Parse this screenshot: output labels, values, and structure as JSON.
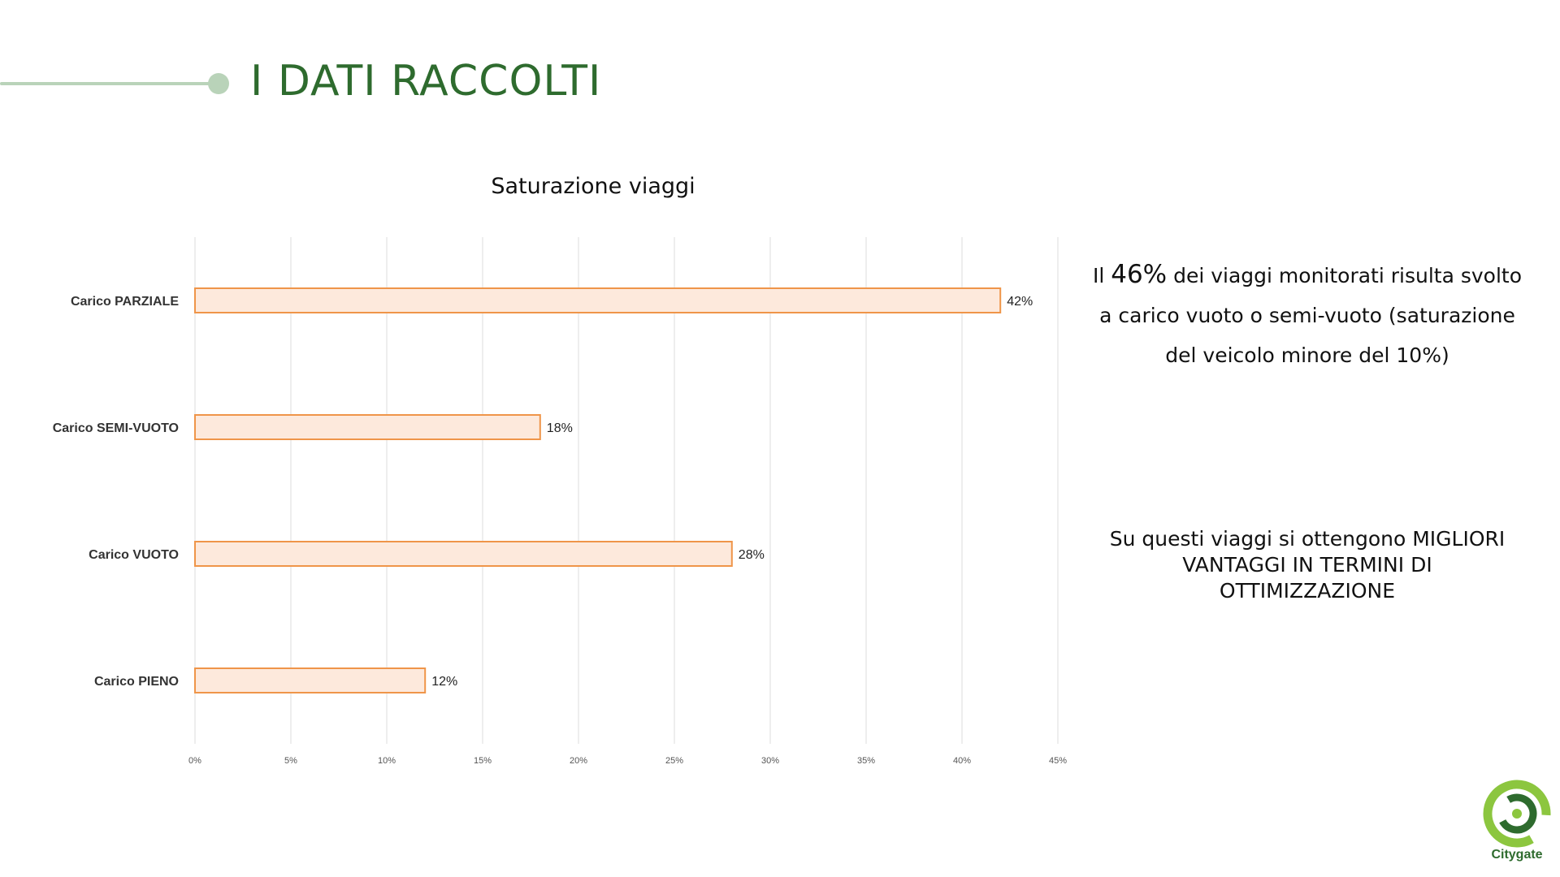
{
  "header": {
    "title": "I DATI RACCOLTI",
    "accent_color": "#b9d3b9",
    "title_color": "#2e6b2e"
  },
  "chart_data": {
    "type": "bar",
    "orientation": "horizontal",
    "title": "Saturazione viaggi",
    "categories": [
      "Carico PARZIALE",
      "Carico SEMI-VUOTO",
      "Carico VUOTO",
      "Carico PIENO"
    ],
    "values": [
      42,
      18,
      28,
      12
    ],
    "value_labels": [
      "42%",
      "18%",
      "28%",
      "12%"
    ],
    "xlim": [
      0,
      45
    ],
    "x_ticks": [
      "0%",
      "5%",
      "10%",
      "15%",
      "20%",
      "25%",
      "30%",
      "35%",
      "40%",
      "45%"
    ],
    "grid": "vertical",
    "bar_fill": "#fde9dc",
    "bar_stroke": "#ef9549"
  },
  "notes": {
    "note1_pre": "Il ",
    "note1_highlight": "46%",
    "note1_rest": " dei viaggi monitorati risulta svolto a carico vuoto o semi-vuoto (saturazione del veicolo minore del 10%)",
    "note2": "Su questi viaggi si ottengono MIGLIORI VANTAGGI IN TERMINI DI OTTIMIZZAZIONE"
  },
  "logo": {
    "text": "Citygate",
    "icon": "citygate-logo-icon",
    "color_light": "#8cc63f",
    "color_dark": "#2e6b2e"
  }
}
